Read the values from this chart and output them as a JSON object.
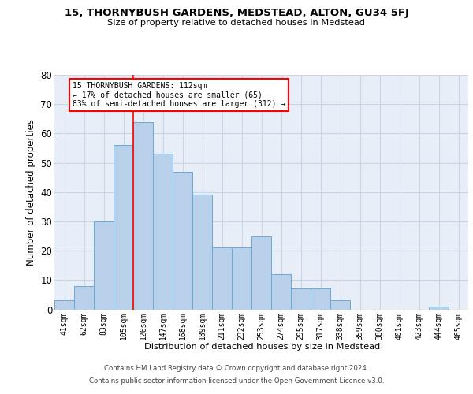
{
  "title": "15, THORNYBUSH GARDENS, MEDSTEAD, ALTON, GU34 5FJ",
  "subtitle": "Size of property relative to detached houses in Medstead",
  "xlabel": "Distribution of detached houses by size in Medstead",
  "ylabel": "Number of detached properties",
  "footer1": "Contains HM Land Registry data © Crown copyright and database right 2024.",
  "footer2": "Contains public sector information licensed under the Open Government Licence v3.0.",
  "bar_labels": [
    "41sqm",
    "62sqm",
    "83sqm",
    "105sqm",
    "126sqm",
    "147sqm",
    "168sqm",
    "189sqm",
    "211sqm",
    "232sqm",
    "253sqm",
    "274sqm",
    "295sqm",
    "317sqm",
    "338sqm",
    "359sqm",
    "380sqm",
    "401sqm",
    "423sqm",
    "444sqm",
    "465sqm"
  ],
  "bar_values": [
    3,
    8,
    30,
    56,
    64,
    53,
    47,
    39,
    21,
    21,
    25,
    12,
    7,
    7,
    3,
    0,
    0,
    0,
    0,
    1,
    0
  ],
  "bar_color": "#b8d0ea",
  "bar_edge_color": "#6aaad4",
  "grid_color": "#ccd5e3",
  "bg_color": "#e8eef8",
  "ann_line1": "15 THORNYBUSH GARDENS: 112sqm",
  "ann_line2": "← 17% of detached houses are smaller (65)",
  "ann_line3": "83% of semi-detached houses are larger (312) →",
  "vline_x": 3.5,
  "ylim": [
    0,
    80
  ],
  "yticks": [
    0,
    10,
    20,
    30,
    40,
    50,
    60,
    70,
    80
  ]
}
